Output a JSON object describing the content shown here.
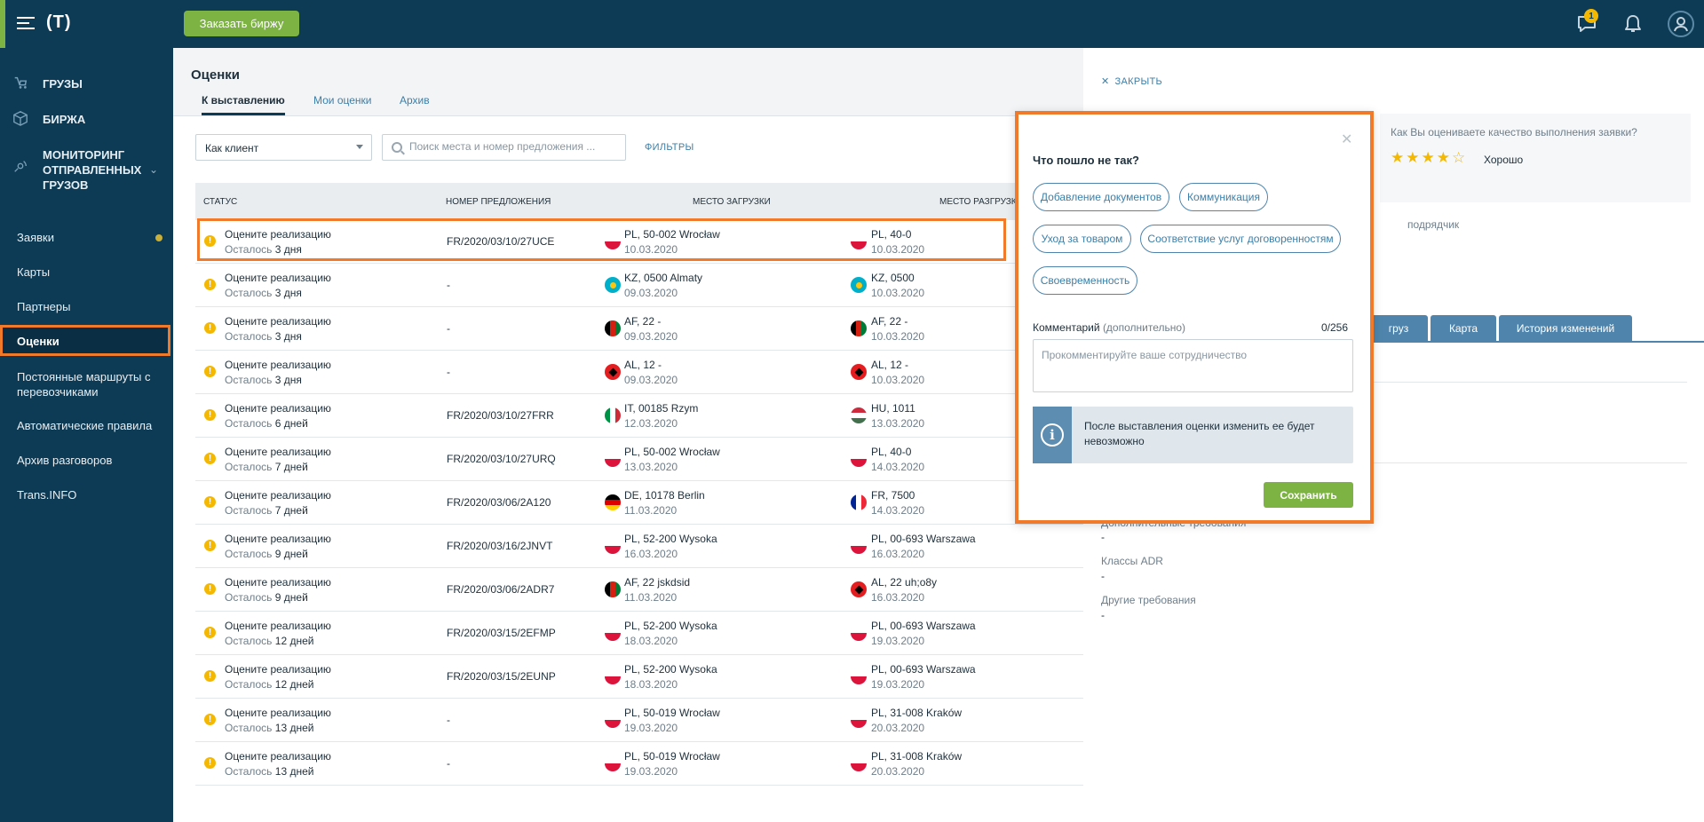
{
  "topbar": {
    "logo": "(T)",
    "order_button": "Заказать биржу",
    "chat_badge": "1",
    "icons": [
      "menu-icon",
      "chat-icon",
      "bell-icon",
      "user-icon"
    ]
  },
  "sidebar": {
    "main_items": [
      {
        "label": "ГРУЗЫ",
        "icon": "cargo-icon"
      },
      {
        "label": "БИРЖА",
        "icon": "box-icon"
      },
      {
        "label": "МОНИТОРИНГ\nОТПРАВЛЕННЫХ\nГРУЗОВ",
        "icon": "tracking-icon"
      }
    ],
    "sub_items": [
      {
        "label": "Заявки"
      },
      {
        "label": "Карты"
      },
      {
        "label": "Партнеры"
      },
      {
        "label": "Оценки"
      },
      {
        "label": "Постоянные маршруты с перевозчиками"
      },
      {
        "label": "Автоматические правила"
      },
      {
        "label": "Архив разговоров"
      },
      {
        "label": "Trans.INFO"
      }
    ],
    "active_item": "Оценки"
  },
  "main": {
    "title": "Оценки",
    "tabs": [
      "К выставлению",
      "Мои оценки",
      "Архив"
    ],
    "active_tab": "К выставлению",
    "filter_select": "Как клиент",
    "search_placeholder": "Поиск места и номер предложения ...",
    "filters_link": "ФИЛЬТРЫ",
    "columns": [
      "СТАТУС",
      "НОМЕР ПРЕДЛОЖЕНИЯ",
      "МЕСТО ЗАГРУЗКИ",
      "МЕСТО РАЗГРУЗКИ"
    ],
    "rows": [
      {
        "status": "Оцените реализацию",
        "left_label": "Осталось",
        "left": "3 дня",
        "number": "FR/2020/03/10/27UCE",
        "load_flag": "PL",
        "load": "PL, 50-002 Wrocław",
        "load_date": "10.03.2020",
        "unload_flag": "PL",
        "unload": "PL, 40-0",
        "unload_date": "10.03.2020"
      },
      {
        "status": "Оцените реализацию",
        "left_label": "Осталось",
        "left": "3 дня",
        "number": "-",
        "load_flag": "KZ",
        "load": "KZ, 0500 Almaty",
        "load_date": "09.03.2020",
        "unload_flag": "KZ",
        "unload": "KZ, 0500",
        "unload_date": "10.03.2020"
      },
      {
        "status": "Оцените реализацию",
        "left_label": "Осталось",
        "left": "3 дня",
        "number": "-",
        "load_flag": "AF",
        "load": "AF, 22 -",
        "load_date": "09.03.2020",
        "unload_flag": "AF",
        "unload": "AF, 22 -",
        "unload_date": "10.03.2020"
      },
      {
        "status": "Оцените реализацию",
        "left_label": "Осталось",
        "left": "3 дня",
        "number": "-",
        "load_flag": "AL",
        "load": "AL, 12 -",
        "load_date": "09.03.2020",
        "unload_flag": "AL",
        "unload": "AL, 12 -",
        "unload_date": "10.03.2020"
      },
      {
        "status": "Оцените реализацию",
        "left_label": "Осталось",
        "left": "6 дней",
        "number": "FR/2020/03/10/27FRR",
        "load_flag": "IT",
        "load": "IT, 00185 Rzym",
        "load_date": "12.03.2020",
        "unload_flag": "HU",
        "unload": "HU, 1011",
        "unload_date": "13.03.2020"
      },
      {
        "status": "Оцените реализацию",
        "left_label": "Осталось",
        "left": "7 дней",
        "number": "FR/2020/03/10/27URQ",
        "load_flag": "PL",
        "load": "PL, 50-002 Wrocław",
        "load_date": "13.03.2020",
        "unload_flag": "PL",
        "unload": "PL, 40-0",
        "unload_date": "14.03.2020"
      },
      {
        "status": "Оцените реализацию",
        "left_label": "Осталось",
        "left": "7 дней",
        "number": "FR/2020/03/06/2A120",
        "load_flag": "DE",
        "load": "DE, 10178 Berlin",
        "load_date": "11.03.2020",
        "unload_flag": "FR",
        "unload": "FR, 7500",
        "unload_date": "14.03.2020"
      },
      {
        "status": "Оцените реализацию",
        "left_label": "Осталось",
        "left": "9 дней",
        "number": "FR/2020/03/16/2JNVT",
        "load_flag": "PL",
        "load": "PL, 52-200 Wysoka",
        "load_date": "16.03.2020",
        "unload_flag": "PL",
        "unload": "PL, 00-693 Warszawa",
        "unload_date": "16.03.2020"
      },
      {
        "status": "Оцените реализацию",
        "left_label": "Осталось",
        "left": "9 дней",
        "number": "FR/2020/03/06/2ADR7",
        "load_flag": "AF",
        "load": "AF, 22 jskdsid",
        "load_date": "11.03.2020",
        "unload_flag": "AL",
        "unload": "AL, 22 uh;o8y",
        "unload_date": "16.03.2020"
      },
      {
        "status": "Оцените реализацию",
        "left_label": "Осталось",
        "left": "12 дней",
        "number": "FR/2020/03/15/2EFMP",
        "load_flag": "PL",
        "load": "PL, 52-200 Wysoka",
        "load_date": "18.03.2020",
        "unload_flag": "PL",
        "unload": "PL, 00-693 Warszawa",
        "unload_date": "19.03.2020"
      },
      {
        "status": "Оцените реализацию",
        "left_label": "Осталось",
        "left": "12 дней",
        "number": "FR/2020/03/15/2EUNP",
        "load_flag": "PL",
        "load": "PL, 52-200 Wysoka",
        "load_date": "18.03.2020",
        "unload_flag": "PL",
        "unload": "PL, 00-693 Warszawa",
        "unload_date": "19.03.2020"
      },
      {
        "status": "Оцените реализацию",
        "left_label": "Осталось",
        "left": "13 дней",
        "number": "-",
        "load_flag": "PL",
        "load": "PL, 50-019 Wrocław",
        "load_date": "19.03.2020",
        "unload_flag": "PL",
        "unload": "PL, 31-008 Kraków",
        "unload_date": "20.03.2020"
      },
      {
        "status": "Оцените реализацию",
        "left_label": "Осталось",
        "left": "13 дней",
        "number": "-",
        "load_flag": "PL",
        "load": "PL, 50-019 Wrocław",
        "load_date": "19.03.2020",
        "unload_flag": "PL",
        "unload": "PL, 31-008 Kraków",
        "unload_date": "20.03.2020"
      }
    ]
  },
  "panel": {
    "close": "ЗАКРЫТЬ",
    "rating_question": "Как Вы оцениваете качество выполнения заявки?",
    "rating_stars": 4,
    "rating_max": 5,
    "rating_word": "Хорошо",
    "role": "подрядчик",
    "tabs": [
      "груз",
      "Карта",
      "История изменений"
    ],
    "fields": [
      {
        "label": "Дополнительные требования",
        "value": "-"
      },
      {
        "label": "Классы ADR",
        "value": "-"
      },
      {
        "label": "Другие требования",
        "value": "-"
      }
    ]
  },
  "modal": {
    "title": "Что пошло не так?",
    "chips": [
      "Добавление документов",
      "Коммуникация",
      "Уход за товаром",
      "Соответствие услуг договоренностям",
      "Своевременность"
    ],
    "comment_label": "Комментарий",
    "comment_optional": "(дополнительно)",
    "comment_counter": "0/256",
    "comment_placeholder": "Прокомментируйте ваше сотрудничество",
    "info_text": "После выставления оценки изменить ее будет невозможно",
    "save": "Сохранить"
  },
  "colors": {
    "brand_dark": "#0d3b55",
    "accent_green": "#7cb342",
    "highlight_orange": "#f07a2a",
    "warning_yellow": "#f5b800",
    "link_blue": "#3d7fa8"
  }
}
